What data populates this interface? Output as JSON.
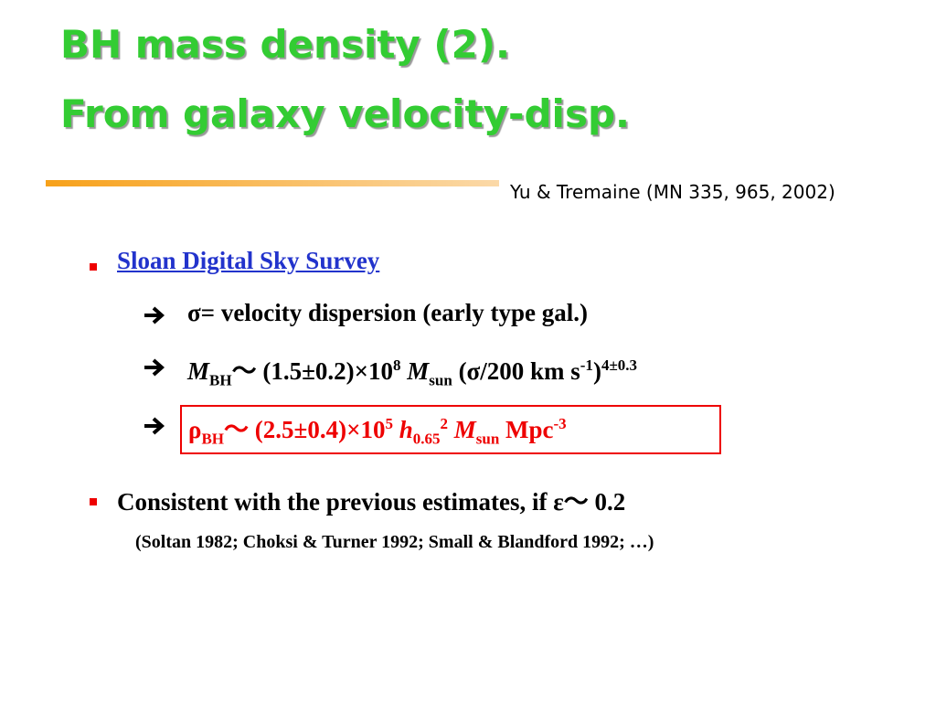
{
  "title": [
    "BH mass density (2).",
    "From galaxy velocity-disp."
  ],
  "reference": "Yu & Tremaine (MN 335, 965, 2002)",
  "bullets": [
    {
      "text": "Sloan Digital Sky Survey",
      "subitems": [
        "σ= velocity dispersion (early type gal.)",
        [
          "M",
          "BH",
          "～ (1.5±0.2)×10",
          "8",
          "M",
          "sun",
          "(σ/200 km s",
          "-1",
          ")",
          "4±0.3"
        ],
        [
          "ρ",
          "BH",
          "～ (2.5±0.4)×10",
          "5",
          "h",
          "0.65",
          "2",
          "M",
          "sun",
          "Mpc",
          "-3"
        ]
      ]
    },
    {
      "text": "Consistent with the previous estimates, if ε～ 0.2",
      "subitems": [
        "(Soltan 1982; Choksi & Turner 1992; Small  & Blandford 1992; …)"
      ]
    }
  ]
}
